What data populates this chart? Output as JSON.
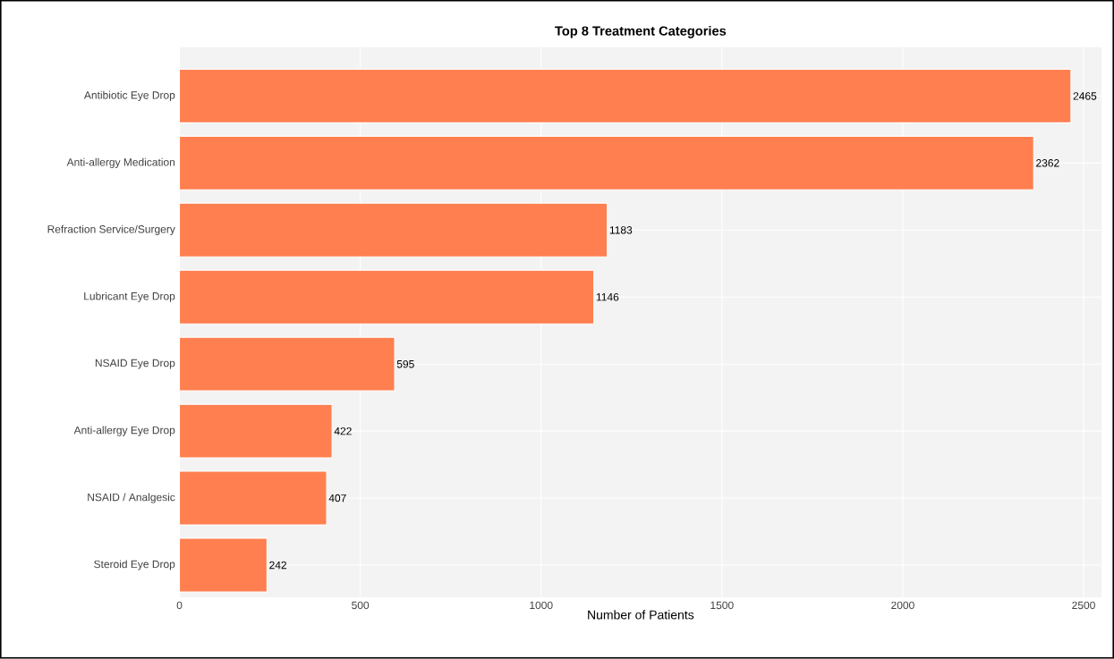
{
  "chart_data": {
    "type": "bar",
    "orientation": "horizontal",
    "title": "Top 8 Treatment Categories",
    "xlabel": "Number of Patients",
    "categories": [
      "Antibiotic Eye Drop",
      "Anti-allergy Medication",
      "Refraction Service/Surgery",
      "Lubricant Eye Drop",
      "NSAID Eye Drop",
      "Anti-allergy Eye Drop",
      "NSAID / Analgesic",
      "Steroid Eye Drop"
    ],
    "values": [
      2465,
      2362,
      1183,
      1146,
      595,
      422,
      407,
      242
    ],
    "color": "#ff7f50",
    "xlim": [
      0,
      2550
    ],
    "xticks": [
      0,
      500,
      1000,
      1500,
      2000,
      2500
    ],
    "grid": true,
    "data_labels": true
  }
}
